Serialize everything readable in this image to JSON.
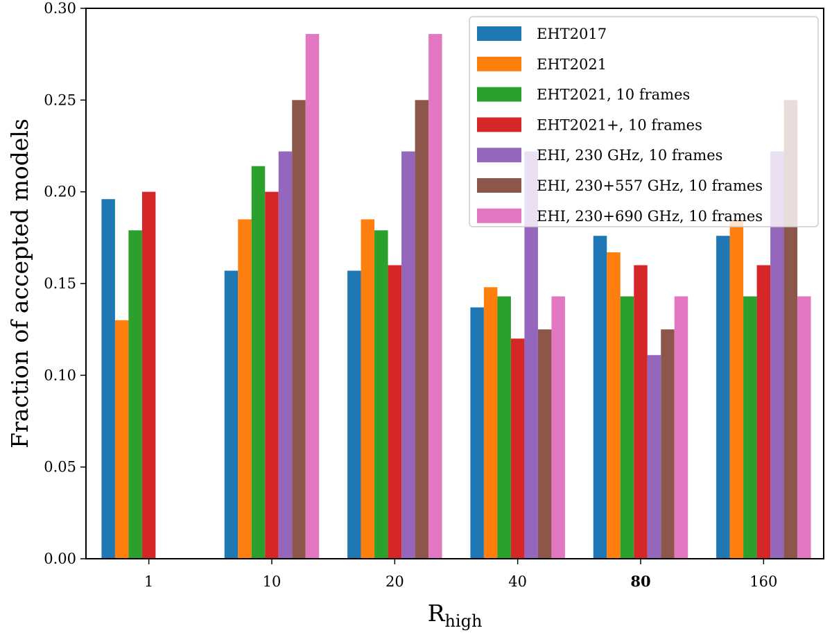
{
  "chart_data": {
    "type": "bar",
    "ylabel": "Fraction of accepted models",
    "xlabel_main": "R",
    "xlabel_sub": "high",
    "categories": [
      "1",
      "10",
      "20",
      "40",
      "80",
      "160"
    ],
    "bold_categories": [
      "80"
    ],
    "ylim": [
      0,
      0.3
    ],
    "yticks": [
      "0.00",
      "0.05",
      "0.10",
      "0.15",
      "0.20",
      "0.25",
      "0.30"
    ],
    "legend_position": "top-right",
    "series": [
      {
        "name": "EHT2017",
        "color": "#1f77b4",
        "values": [
          0.196,
          0.157,
          0.157,
          0.137,
          0.176,
          0.176
        ]
      },
      {
        "name": "EHT2021",
        "color": "#ff7f0e",
        "values": [
          0.13,
          0.185,
          0.185,
          0.148,
          0.167,
          0.185
        ]
      },
      {
        "name": "EHT2021, 10 frames",
        "color": "#2ca02c",
        "values": [
          0.179,
          0.214,
          0.179,
          0.143,
          0.143,
          0.143
        ]
      },
      {
        "name": "EHT2021+, 10 frames",
        "color": "#d62728",
        "values": [
          0.2,
          0.2,
          0.16,
          0.12,
          0.16,
          0.16
        ]
      },
      {
        "name": "EHI, 230 GHz, 10 frames",
        "color": "#9467bd",
        "values": [
          0,
          0.222,
          0.222,
          0.222,
          0.111,
          0.222
        ]
      },
      {
        "name": "EHI, 230+557 GHz, 10 frames",
        "color": "#8c564b",
        "values": [
          0,
          0.25,
          0.25,
          0.125,
          0.125,
          0.25
        ]
      },
      {
        "name": "EHI, 230+690 GHz, 10 frames",
        "color": "#e377c2",
        "values": [
          0,
          0.286,
          0.286,
          0.143,
          0.143,
          0.143
        ]
      }
    ]
  }
}
